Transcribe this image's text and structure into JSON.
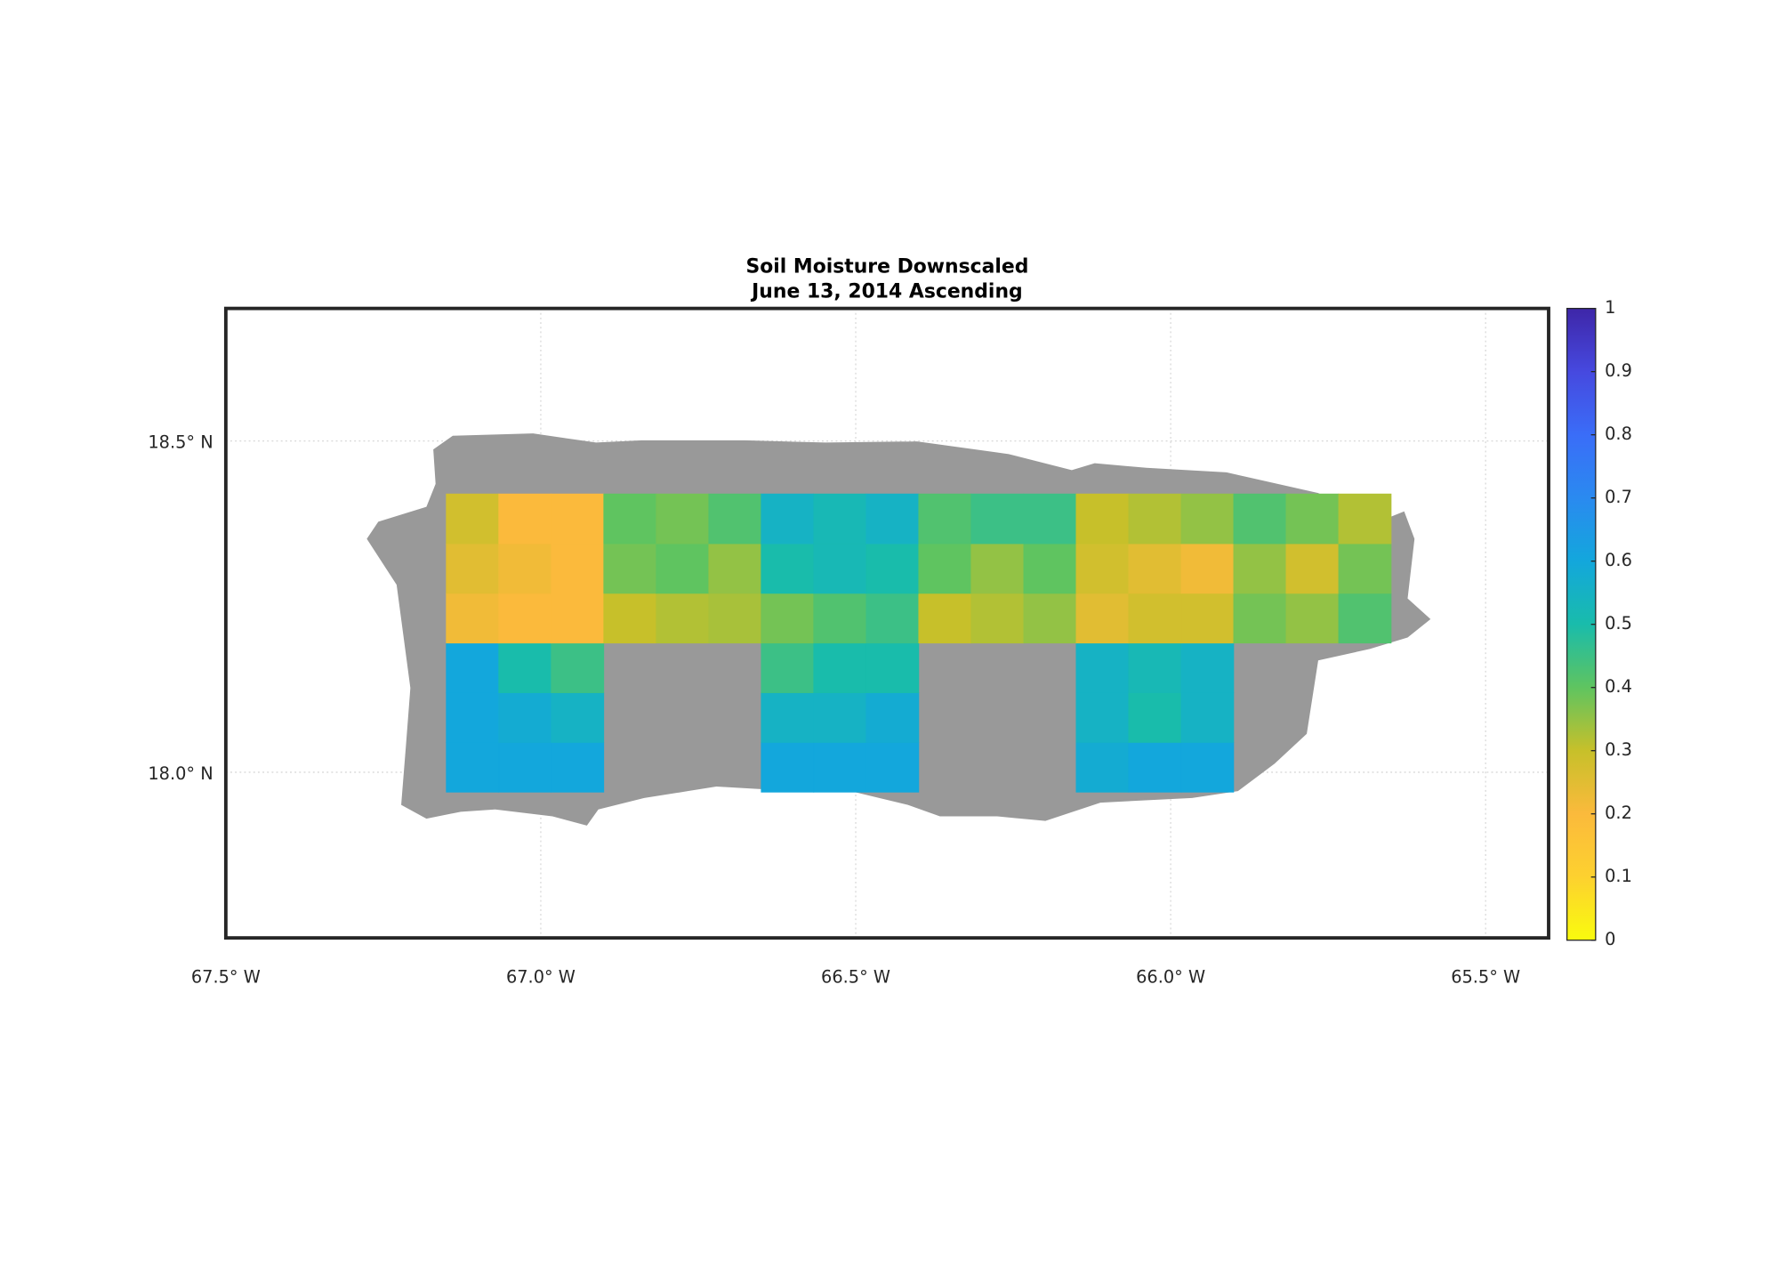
{
  "chart_data": {
    "type": "heatmap",
    "title": "Soil Moisture Downscaled",
    "subtitle": "June 13, 2014 Ascending",
    "xlim": [
      -67.5,
      -65.4
    ],
    "ylim": [
      17.75,
      18.7
    ],
    "xticks": [
      {
        "value": -67.5,
        "label": "67.5° W"
      },
      {
        "value": -67.0,
        "label": "67.0° W"
      },
      {
        "value": -66.5,
        "label": "66.5° W"
      },
      {
        "value": -66.0,
        "label": "66.0° W"
      },
      {
        "value": -65.5,
        "label": "65.5° W"
      }
    ],
    "yticks": [
      {
        "value": 18.0,
        "label": "18.0° N"
      },
      {
        "value": 18.5,
        "label": "18.5° N"
      }
    ],
    "grid": true,
    "x_edges": [
      -67.15,
      -67.0667,
      -66.9833,
      -66.9,
      -66.8167,
      -66.7333,
      -66.65,
      -66.5667,
      -66.4833,
      -66.4,
      -66.3167,
      -66.2333,
      -66.15,
      -66.0667,
      -65.9833,
      -65.9,
      -65.8167,
      -65.7333,
      -65.65
    ],
    "y_edges": [
      17.97,
      18.045,
      18.12,
      18.195,
      18.27,
      18.345,
      18.42
    ],
    "z": [
      [
        0.6,
        0.6,
        0.6,
        null,
        null,
        null,
        0.6,
        0.6,
        0.6,
        null,
        null,
        null,
        0.58,
        0.6,
        0.6,
        null,
        null,
        null
      ],
      [
        0.6,
        0.58,
        0.55,
        null,
        null,
        null,
        0.55,
        0.55,
        0.58,
        null,
        null,
        null,
        0.55,
        0.5,
        0.55,
        null,
        null,
        null
      ],
      [
        0.6,
        0.5,
        0.45,
        null,
        null,
        null,
        0.45,
        0.5,
        0.5,
        null,
        null,
        null,
        0.55,
        0.52,
        0.55,
        null,
        null,
        null
      ],
      [
        0.22,
        0.2,
        0.2,
        0.3,
        0.32,
        0.33,
        0.38,
        0.42,
        0.45,
        0.3,
        0.32,
        0.35,
        0.25,
        0.28,
        0.28,
        0.38,
        0.35,
        0.42
      ],
      [
        0.25,
        0.22,
        0.2,
        0.38,
        0.4,
        0.35,
        0.5,
        0.52,
        0.5,
        0.4,
        0.35,
        0.4,
        0.28,
        0.25,
        0.22,
        0.35,
        0.28,
        0.38
      ],
      [
        0.28,
        0.2,
        0.2,
        0.4,
        0.38,
        0.42,
        0.55,
        0.52,
        0.55,
        0.42,
        0.45,
        0.45,
        0.3,
        0.32,
        0.35,
        0.42,
        0.38,
        0.32
      ]
    ],
    "clim": [
      0,
      1
    ],
    "colorbar_ticks": [
      0,
      0.1,
      0.2,
      0.3,
      0.4,
      0.5,
      0.6,
      0.7,
      0.8,
      0.9,
      1
    ],
    "colormap": [
      "#f9fb0e",
      "#fdd12f",
      "#fbba3c",
      "#c7c02a",
      "#5fc460",
      "#19bcab",
      "#13a7dc",
      "#2a8af0",
      "#3a6df8",
      "#4649df",
      "#3e26a8"
    ],
    "nodata_color": "#999999"
  }
}
